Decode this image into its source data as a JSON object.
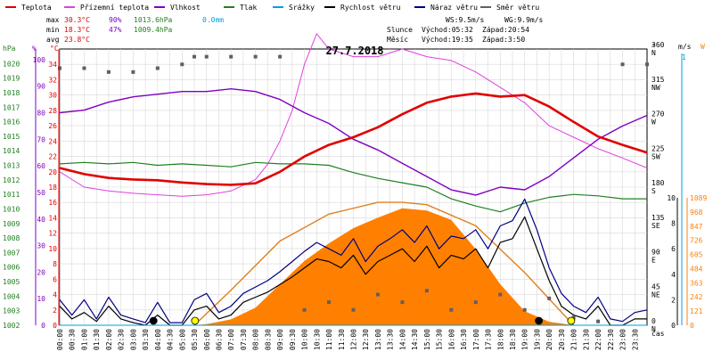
{
  "date_title": "27.7.2018",
  "legend": [
    {
      "label": "Teplota",
      "color": "#e00000"
    },
    {
      "label": "Přízemní teplota",
      "color": "#e040e0"
    },
    {
      "label": "Vlhkost",
      "color": "#8000c0"
    },
    {
      "label": "Tlak",
      "color": "#208020"
    },
    {
      "label": "Srážky",
      "color": "#00a0e0"
    },
    {
      "label": "Rychlost větru",
      "color": "#000000"
    },
    {
      "label": "Náraz větru",
      "color": "#000080"
    },
    {
      "label": "Směr větru",
      "color": "#606060"
    }
  ],
  "stats": {
    "max_label": "max",
    "max_temp": "30.3°C",
    "max_hum": "90%",
    "max_press": "1013.6hPa",
    "max_rain": "0.0mm",
    "min_label": "min",
    "min_temp": "18.3°C",
    "min_hum": "47%",
    "min_press": "1009.4hPa",
    "avg_label": "avg",
    "avg_temp": "23.8°C"
  },
  "wind_info": {
    "ws": "WS:9.5m/s",
    "wg": "WG:9.9m/s"
  },
  "sun": {
    "label": "Slunce",
    "rise": "Východ:05:32",
    "set": "Západ:20:54"
  },
  "moon": {
    "label": "Měsíc",
    "rise": "Východ:19:35",
    "set": "Západ:3:50"
  },
  "axis_units": {
    "hpa": "hPa",
    "pct": "%",
    "degc": "°C",
    "deg": "°",
    "ms": "m/s",
    "w": "W",
    "cas": "čas"
  },
  "colors": {
    "temp": "#e00000",
    "ground": "#e040e0",
    "hum": "#8000c0",
    "press": "#208020",
    "rain": "#00a0e0",
    "speed": "#000000",
    "gust": "#000080",
    "dir": "#606060",
    "solar": "#ff8000",
    "solar_curve": "#e08020",
    "sun_marker": "#ffff00",
    "moon_marker": "#000000"
  },
  "chart_data": {
    "type": "line",
    "x_label": "čas",
    "x_ticks": [
      "00:00",
      "00:30",
      "01:00",
      "01:30",
      "02:00",
      "02:30",
      "03:00",
      "03:30",
      "04:00",
      "04:30",
      "05:00",
      "05:30",
      "06:00",
      "06:30",
      "07:00",
      "07:30",
      "08:00",
      "08:30",
      "09:00",
      "09:30",
      "10:00",
      "10:30",
      "11:00",
      "11:30",
      "12:00",
      "12:30",
      "13:00",
      "13:30",
      "14:00",
      "14:30",
      "15:00",
      "15:30",
      "16:00",
      "16:30",
      "17:00",
      "17:30",
      "18:00",
      "18:30",
      "19:00",
      "19:30",
      "20:00",
      "20:30",
      "21:00",
      "21:30",
      "22:00",
      "22:30",
      "23:00",
      "23:30"
    ],
    "axes": {
      "pressure_hpa": {
        "range": [
          1002,
          1021
        ],
        "ticks": [
          1002,
          1003,
          1004,
          1005,
          1006,
          1007,
          1008,
          1009,
          1010,
          1011,
          1012,
          1013,
          1014,
          1015,
          1016,
          1017,
          1018,
          1019,
          1020
        ]
      },
      "humidity_pct": {
        "range": [
          0,
          104
        ],
        "ticks": [
          0,
          10,
          20,
          30,
          40,
          50,
          60,
          70,
          80,
          90,
          100
        ]
      },
      "temperature_c": {
        "range": [
          0,
          36
        ],
        "ticks": [
          0,
          2,
          4,
          6,
          8,
          10,
          12,
          14,
          16,
          18,
          20,
          22,
          24,
          26,
          28,
          30,
          32,
          34
        ]
      },
      "direction_deg": {
        "range": [
          0,
          360
        ],
        "ticks": [
          {
            "v": 0,
            "l": "0",
            "c": "N"
          },
          {
            "v": 45,
            "l": "45",
            "c": "NE"
          },
          {
            "v": 90,
            "l": "90",
            "c": "E"
          },
          {
            "v": 135,
            "l": "135",
            "c": "SE"
          },
          {
            "v": 180,
            "l": "180",
            "c": "S"
          },
          {
            "v": 225,
            "l": "225",
            "c": "SW"
          },
          {
            "v": 270,
            "l": "270",
            "c": "W"
          },
          {
            "v": 315,
            "l": "315",
            "c": "NW"
          },
          {
            "v": 360,
            "l": "360",
            "c": "N"
          }
        ]
      },
      "wind_ms": {
        "range": [
          0,
          10
        ],
        "ticks": [
          0,
          2,
          4,
          6,
          8,
          10
        ]
      },
      "rain_ms_axis": {
        "top_label": "1"
      },
      "solar_w": {
        "range": [
          0,
          1089
        ],
        "ticks": [
          0,
          121,
          242,
          363,
          484,
          605,
          726,
          847,
          968,
          1089
        ]
      }
    },
    "series": [
      {
        "name": "Teplota",
        "unit": "°C",
        "x": [
          0,
          1,
          2,
          3,
          4,
          5,
          6,
          7,
          8,
          9,
          10,
          11,
          12,
          13,
          14,
          15,
          16,
          17,
          18,
          19,
          20,
          21,
          22,
          23,
          24
        ],
        "y": [
          20.5,
          19.7,
          19.2,
          19.0,
          18.9,
          18.6,
          18.4,
          18.3,
          18.5,
          20.0,
          22.0,
          23.5,
          24.5,
          25.8,
          27.5,
          29.0,
          29.8,
          30.2,
          29.8,
          30.0,
          28.5,
          26.5,
          24.6,
          23.5,
          22.5
        ]
      },
      {
        "name": "Přízemní teplota",
        "unit": "°C",
        "x": [
          0,
          1,
          2,
          3,
          4,
          5,
          6,
          7,
          8,
          8.5,
          9,
          9.5,
          10,
          10.5,
          11,
          12,
          13,
          14,
          15,
          16,
          17,
          18,
          19,
          20,
          21,
          22,
          23,
          24
        ],
        "y": [
          20.0,
          18.0,
          17.5,
          17.2,
          17.0,
          16.8,
          17.0,
          17.5,
          19.0,
          21.0,
          24.0,
          28.0,
          34.0,
          38.0,
          36.0,
          35.0,
          35.0,
          36.0,
          35.0,
          34.5,
          33.0,
          31.0,
          29.0,
          26.0,
          24.5,
          23.0,
          21.8,
          20.5
        ]
      },
      {
        "name": "Vlhkost",
        "unit": "%",
        "x": [
          0,
          1,
          2,
          3,
          4,
          5,
          6,
          7,
          8,
          9,
          10,
          11,
          12,
          13,
          14,
          15,
          16,
          17,
          18,
          19,
          20,
          21,
          22,
          23,
          24
        ],
        "y": [
          80,
          81,
          84,
          86,
          87,
          88,
          88,
          89,
          88,
          85,
          80,
          76,
          70,
          66,
          61,
          56,
          51,
          49,
          52,
          51,
          56,
          63,
          70,
          75,
          79
        ]
      },
      {
        "name": "Tlak",
        "unit": "hPa",
        "x": [
          0,
          1,
          2,
          3,
          4,
          5,
          6,
          7,
          8,
          9,
          10,
          11,
          12,
          13,
          14,
          15,
          16,
          17,
          18,
          19,
          20,
          21,
          22,
          23,
          24
        ],
        "y": [
          1013.1,
          1013.2,
          1013.1,
          1013.2,
          1013.0,
          1013.1,
          1013.0,
          1012.9,
          1013.2,
          1013.1,
          1013.1,
          1013.0,
          1012.5,
          1012.1,
          1011.8,
          1011.5,
          1010.7,
          1010.2,
          1009.8,
          1010.4,
          1010.8,
          1011.0,
          1010.9,
          1010.7,
          1010.7
        ]
      },
      {
        "name": "Srážky",
        "unit": "mm",
        "x": [
          0,
          24
        ],
        "y": [
          0.0,
          0.0
        ]
      },
      {
        "name": "Rychlost větru",
        "unit": "m/s",
        "x": [
          0,
          0.5,
          1,
          1.5,
          2,
          2.5,
          3,
          3.5,
          4,
          4.5,
          5,
          5.5,
          6,
          6.5,
          7,
          7.5,
          8,
          8.5,
          9,
          9.5,
          10,
          10.5,
          11,
          11.5,
          12,
          12.5,
          13,
          13.5,
          14,
          14.5,
          15,
          15.5,
          16,
          16.5,
          17,
          17.5,
          18,
          18.5,
          19,
          19.5,
          20,
          20.5,
          21,
          21.5,
          22,
          22.5,
          23,
          23.5,
          24
        ],
        "y": [
          1.5,
          0.5,
          1.0,
          0.3,
          1.5,
          0.5,
          0.2,
          0.0,
          0.8,
          0.0,
          0.0,
          1.2,
          1.5,
          0.5,
          0.8,
          1.8,
          2.2,
          2.6,
          3.2,
          3.8,
          4.5,
          5.2,
          5.0,
          4.5,
          5.5,
          4.0,
          5.0,
          5.5,
          6.0,
          5.0,
          6.2,
          4.5,
          5.5,
          5.2,
          6.0,
          4.5,
          6.5,
          6.8,
          8.5,
          6.0,
          3.5,
          1.5,
          0.8,
          0.5,
          1.5,
          0.0,
          0.0,
          0.5,
          0.5
        ]
      },
      {
        "name": "Náraz větru",
        "unit": "m/s",
        "x": [
          0,
          0.5,
          1,
          1.5,
          2,
          2.5,
          3,
          3.5,
          4,
          4.5,
          5,
          5.5,
          6,
          6.5,
          7,
          7.5,
          8,
          8.5,
          9,
          9.5,
          10,
          10.5,
          11,
          11.5,
          12,
          12.5,
          13,
          13.5,
          14,
          14.5,
          15,
          15.5,
          16,
          16.5,
          17,
          17.5,
          18,
          18.5,
          19,
          19.5,
          20,
          20.5,
          21,
          21.5,
          22,
          22.5,
          23,
          23.5,
          24
        ],
        "y": [
          2.0,
          0.8,
          2.0,
          0.5,
          2.2,
          0.8,
          0.5,
          0.2,
          1.8,
          0.2,
          0.2,
          2.0,
          2.5,
          1.0,
          1.5,
          2.5,
          3.0,
          3.5,
          4.2,
          5.0,
          5.8,
          6.5,
          6.0,
          5.5,
          6.8,
          5.0,
          6.2,
          6.8,
          7.5,
          6.5,
          7.8,
          6.0,
          7.0,
          6.8,
          7.5,
          6.0,
          7.8,
          8.2,
          9.9,
          7.5,
          4.5,
          2.5,
          1.5,
          1.0,
          2.2,
          0.5,
          0.3,
          1.0,
          1.2
        ]
      },
      {
        "name": "Směr větru",
        "unit": "°",
        "x": [
          0,
          1,
          2,
          3,
          4,
          5,
          5.5,
          6,
          7,
          8,
          9,
          10,
          11,
          12,
          13,
          14,
          15,
          16,
          17,
          18,
          19,
          20,
          21,
          22,
          23,
          24
        ],
        "y": [
          335,
          335,
          330,
          330,
          335,
          340,
          350,
          350,
          350,
          350,
          350,
          20,
          30,
          20,
          40,
          30,
          45,
          20,
          30,
          40,
          20,
          35,
          10,
          5,
          340,
          340
        ]
      },
      {
        "name": "Solar",
        "unit": "W",
        "x": [
          0,
          5.5,
          6,
          7,
          8,
          9,
          10,
          11,
          12,
          13,
          14,
          15,
          16,
          17,
          18,
          19,
          20,
          21,
          24
        ],
        "y": [
          0,
          0,
          10,
          50,
          150,
          350,
          550,
          700,
          830,
          920,
          1000,
          980,
          900,
          650,
          350,
          120,
          30,
          0,
          0
        ]
      },
      {
        "name": "Solar clear-sky",
        "unit": "W",
        "x": [
          5.5,
          7,
          9,
          11,
          13,
          14,
          15,
          17,
          19,
          21
        ],
        "y": [
          0,
          300,
          720,
          950,
          1050,
          1050,
          1030,
          850,
          450,
          0
        ]
      }
    ],
    "markers": [
      {
        "name": "Slunce východ",
        "x": 5.53,
        "color": "#ffff00"
      },
      {
        "name": "Slunce západ",
        "x": 20.9,
        "color": "#ffff00"
      },
      {
        "name": "Měsíc východ",
        "x": 19.58,
        "color": "#000000"
      },
      {
        "name": "Měsíc západ",
        "x": 3.83,
        "color": "#000000"
      }
    ]
  }
}
